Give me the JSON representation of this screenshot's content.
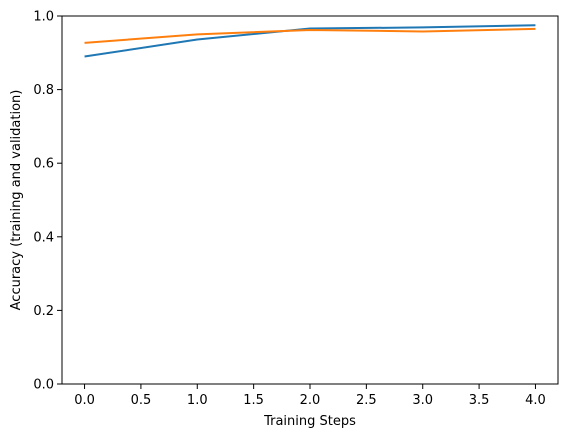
{
  "chart_data": {
    "type": "line",
    "title": "",
    "xlabel": "Training Steps",
    "ylabel": "Accuracy (training and validation)",
    "x": [
      0,
      1,
      2,
      3,
      4
    ],
    "series": [
      {
        "values": [
          0.89,
          0.936,
          0.966,
          0.969,
          0.975
        ],
        "color": "#1f77b4"
      },
      {
        "values": [
          0.927,
          0.95,
          0.962,
          0.958,
          0.965
        ],
        "color": "#ff7f0e"
      }
    ],
    "xlim": [
      -0.2,
      4.2
    ],
    "ylim": [
      0.0,
      1.0
    ],
    "xticks": [
      0,
      0.5,
      1,
      1.5,
      2,
      2.5,
      3,
      3.5,
      4
    ],
    "xtick_labels": [
      "0.0",
      "0.5",
      "1.0",
      "1.5",
      "2.0",
      "2.5",
      "3.0",
      "3.5",
      "4.0"
    ],
    "yticks": [
      0,
      0.2,
      0.4,
      0.6,
      0.8,
      1.0
    ],
    "ytick_labels": [
      "0.0",
      "0.2",
      "0.4",
      "0.6",
      "0.8",
      "1.0"
    ],
    "grid": false,
    "legend": "none"
  }
}
